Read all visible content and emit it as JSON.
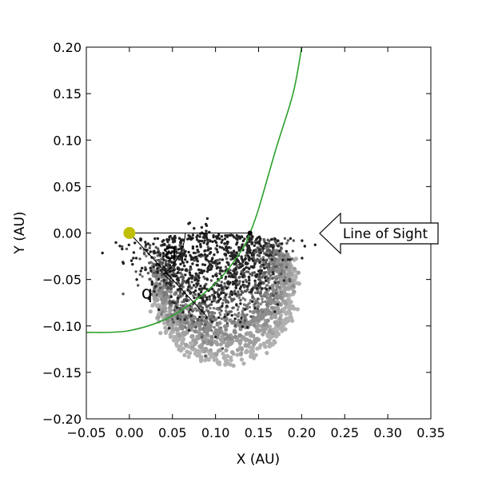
{
  "chart_data": {
    "type": "scatter",
    "xlabel": "X (AU)",
    "ylabel": "Y (AU)",
    "xlim": [
      -0.05,
      0.35
    ],
    "ylim": [
      -0.2,
      0.2
    ],
    "x_ticks": [
      "−0.05",
      "0.00",
      "0.05",
      "0.10",
      "0.15",
      "0.20",
      "0.25",
      "0.30",
      "0.35"
    ],
    "y_ticks": [
      "−0.20",
      "−0.15",
      "−0.10",
      "−0.05",
      "0.00",
      "0.05",
      "0.10",
      "0.15",
      "0.20"
    ],
    "grid": false,
    "sun": {
      "x": 0.0,
      "y": 0.0,
      "color": "#bfbf00"
    },
    "orbit": {
      "color": "#2ca02c",
      "perihelion_distance_au": 0.14,
      "argument_angle_deg": 45,
      "points": [
        [
          -0.05,
          -0.107
        ],
        [
          0.0,
          -0.105
        ],
        [
          0.05,
          -0.089
        ],
        [
          0.1,
          -0.054
        ],
        [
          0.13,
          -0.019
        ],
        [
          0.14,
          0.0
        ],
        [
          0.15,
          0.026
        ],
        [
          0.17,
          0.09
        ],
        [
          0.19,
          0.15
        ],
        [
          0.2,
          0.2
        ]
      ]
    },
    "perihelion_point": {
      "x": 0.14,
      "y": 0.0
    },
    "particle_streams": [
      {
        "shade": "#222222",
        "center": [
          0.087,
          -0.001
        ],
        "radius": 0.052,
        "start_deg": -2,
        "end_deg": -177,
        "jitter": 0.026,
        "count": 650
      },
      {
        "shade": "#555555",
        "center": [
          0.095,
          -0.011
        ],
        "radius": 0.059,
        "start_deg": 4,
        "end_deg": -180,
        "jitter": 0.02,
        "count": 520
      },
      {
        "shade": "#777777",
        "center": [
          0.101,
          -0.024
        ],
        "radius": 0.065,
        "start_deg": 9,
        "end_deg": -180,
        "jitter": 0.01,
        "count": 380
      },
      {
        "shade": "#8c8c8c",
        "center": [
          0.104,
          -0.035
        ],
        "radius": 0.07,
        "start_deg": 13,
        "end_deg": -180,
        "jitter": 0.006,
        "count": 320
      },
      {
        "shade": "#9f9f9f",
        "center": [
          0.107,
          -0.046
        ],
        "radius": 0.074,
        "start_deg": 17,
        "end_deg": -180,
        "jitter": 0.005,
        "count": 320
      },
      {
        "shade": "#b0b0b0",
        "center": [
          0.11,
          -0.058
        ],
        "radius": 0.078,
        "start_deg": 20,
        "end_deg": -180,
        "jitter": 0.004,
        "count": 320
      }
    ],
    "annotations": {
      "omega_symbol": "ϖ",
      "q_label": "q",
      "line_of_sight": "Line of Sight"
    }
  }
}
